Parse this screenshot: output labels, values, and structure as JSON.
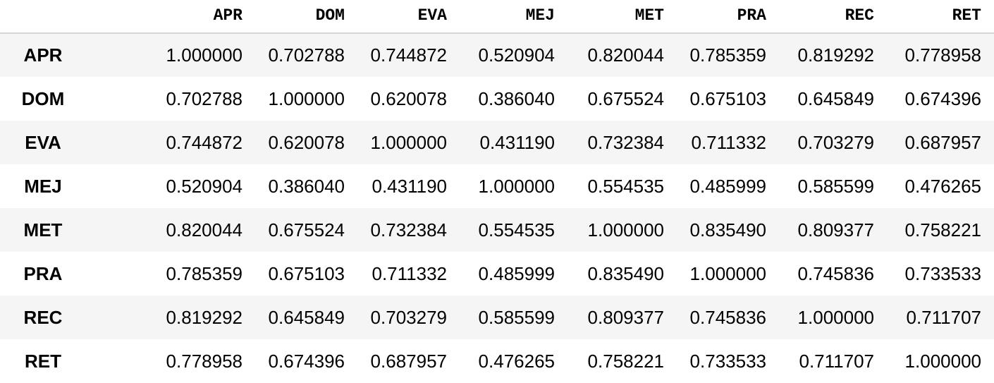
{
  "table": {
    "columns": [
      "APR",
      "DOM",
      "EVA",
      "MEJ",
      "MET",
      "PRA",
      "REC",
      "RET"
    ],
    "rows": [
      {
        "index": "APR",
        "values": [
          "1.000000",
          "0.702788",
          "0.744872",
          "0.520904",
          "0.820044",
          "0.785359",
          "0.819292",
          "0.778958"
        ]
      },
      {
        "index": "DOM",
        "values": [
          "0.702788",
          "1.000000",
          "0.620078",
          "0.386040",
          "0.675524",
          "0.675103",
          "0.645849",
          "0.674396"
        ]
      },
      {
        "index": "EVA",
        "values": [
          "0.744872",
          "0.620078",
          "1.000000",
          "0.431190",
          "0.732384",
          "0.711332",
          "0.703279",
          "0.687957"
        ]
      },
      {
        "index": "MEJ",
        "values": [
          "0.520904",
          "0.386040",
          "0.431190",
          "1.000000",
          "0.554535",
          "0.485999",
          "0.585599",
          "0.476265"
        ]
      },
      {
        "index": "MET",
        "values": [
          "0.820044",
          "0.675524",
          "0.732384",
          "0.554535",
          "1.000000",
          "0.835490",
          "0.809377",
          "0.758221"
        ]
      },
      {
        "index": "PRA",
        "values": [
          "0.785359",
          "0.675103",
          "0.711332",
          "0.485999",
          "0.835490",
          "1.000000",
          "0.745836",
          "0.733533"
        ]
      },
      {
        "index": "REC",
        "values": [
          "0.819292",
          "0.645849",
          "0.703279",
          "0.585599",
          "0.809377",
          "0.745836",
          "1.000000",
          "0.711707"
        ]
      },
      {
        "index": "RET",
        "values": [
          "0.778958",
          "0.674396",
          "0.687957",
          "0.476265",
          "0.758221",
          "0.733533",
          "0.711707",
          "1.000000"
        ]
      }
    ]
  },
  "colors": {
    "stripe": "#f5f5f5",
    "header_rule": "#d6d6d6",
    "text": "#000000"
  }
}
